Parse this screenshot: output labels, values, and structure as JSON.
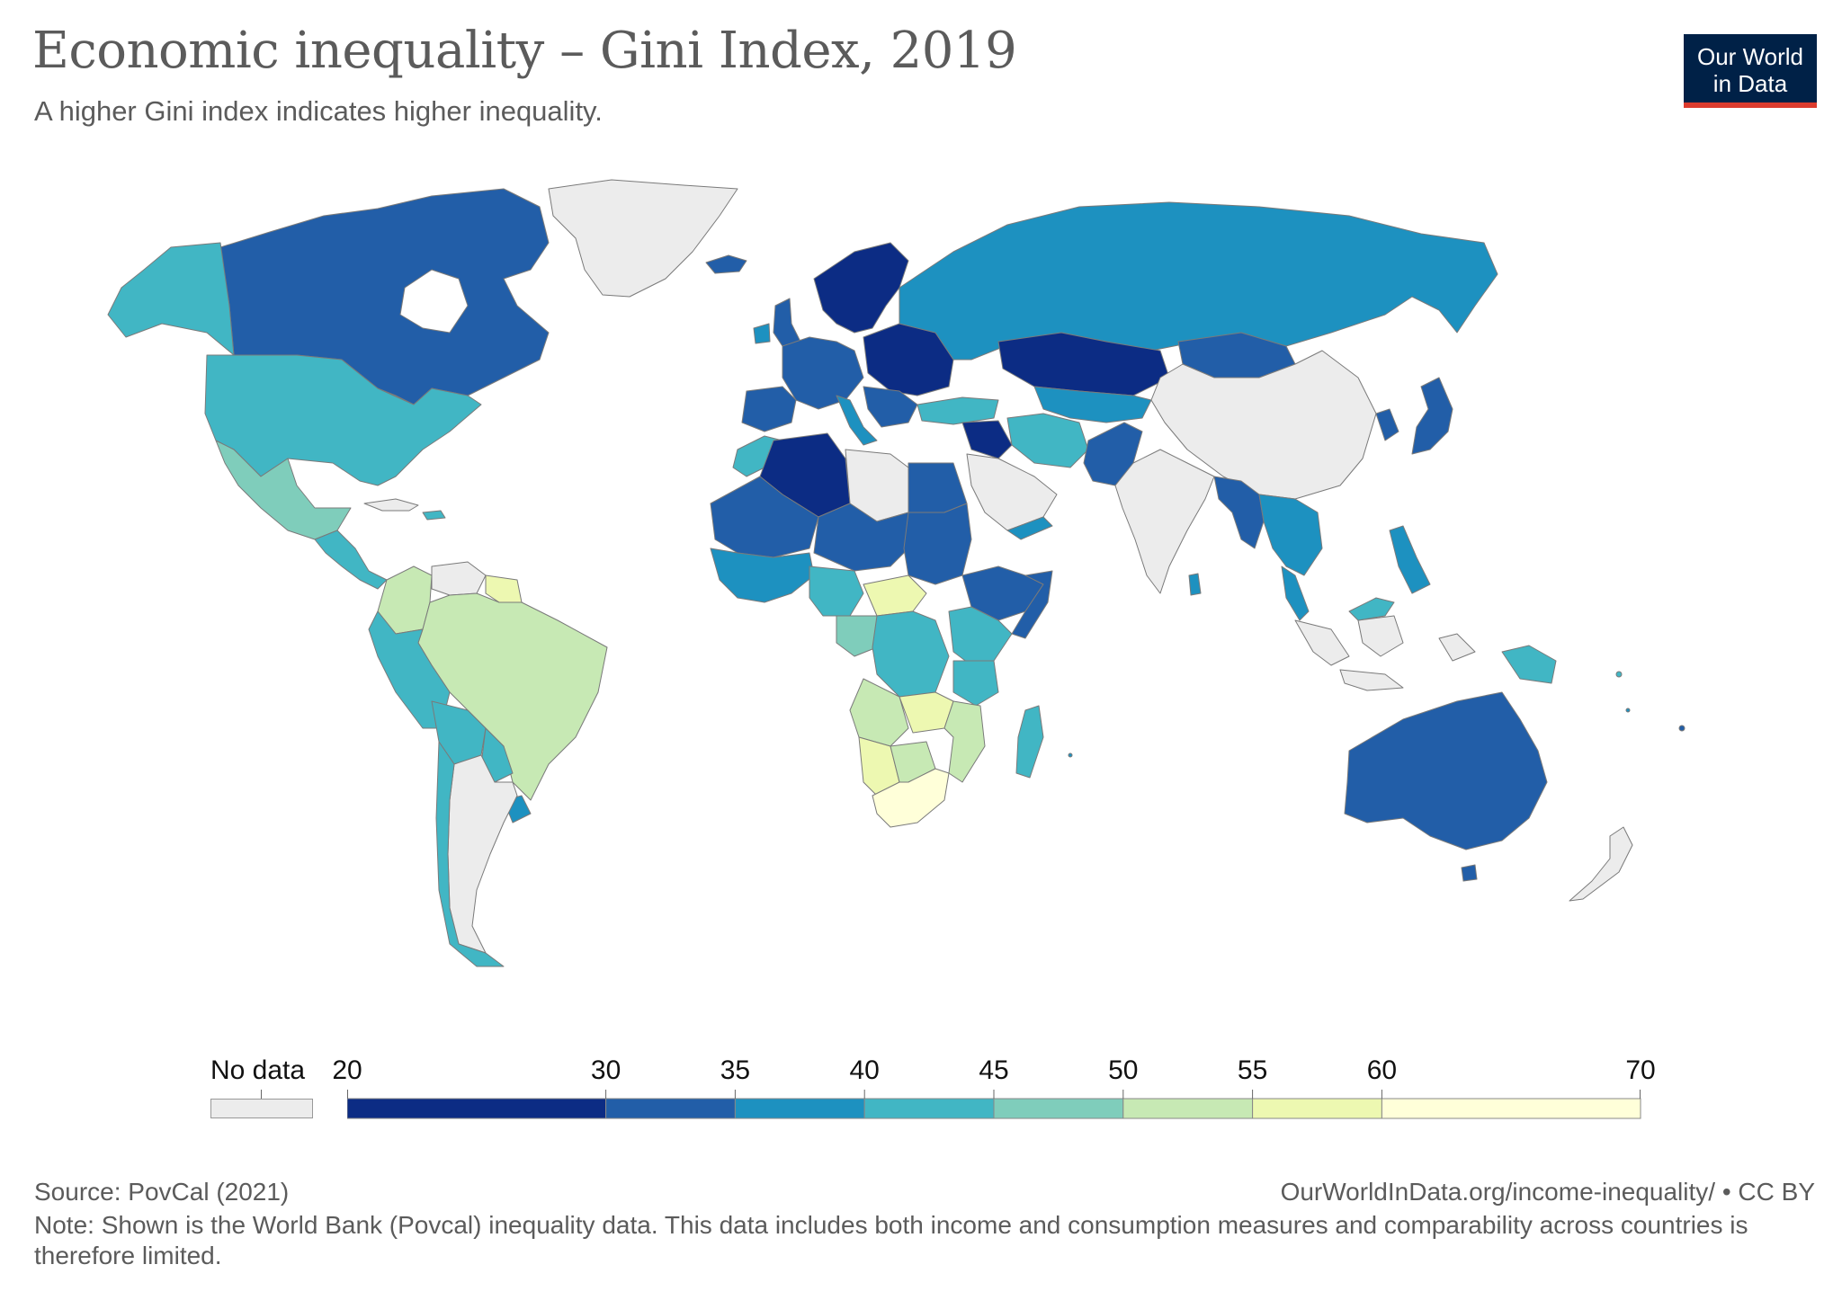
{
  "header": {
    "title": "Economic inequality – Gini Index, 2019",
    "subtitle": "A higher Gini index indicates higher inequality."
  },
  "logo": {
    "line1": "Our World",
    "line2": "in Data",
    "bg_color": "#002147",
    "accent_color": "#dc3b2e"
  },
  "legend": {
    "no_data_label": "No data",
    "no_data_color": "#ececec",
    "ticks": [
      "20",
      "30",
      "35",
      "40",
      "45",
      "50",
      "55",
      "60",
      "70"
    ],
    "bins": [
      {
        "from": 20,
        "to": 30,
        "color": "#0c2c84"
      },
      {
        "from": 30,
        "to": 35,
        "color": "#225ea8"
      },
      {
        "from": 35,
        "to": 40,
        "color": "#1d91c0"
      },
      {
        "from": 40,
        "to": 45,
        "color": "#41b6c4"
      },
      {
        "from": 45,
        "to": 50,
        "color": "#7fcdbb"
      },
      {
        "from": 50,
        "to": 55,
        "color": "#c7e9b4"
      },
      {
        "from": 55,
        "to": 60,
        "color": "#edf8b1"
      },
      {
        "from": 60,
        "to": 70,
        "color": "#ffffd9"
      }
    ]
  },
  "footer": {
    "source": "Source: PovCal (2021)",
    "url": "OurWorldInData.org/income-inequality/ • CC BY",
    "note": "Note: Shown is the World Bank (Povcal) inequality data. This data includes both income and consumption measures and comparability across countries is therefore limited."
  }
}
